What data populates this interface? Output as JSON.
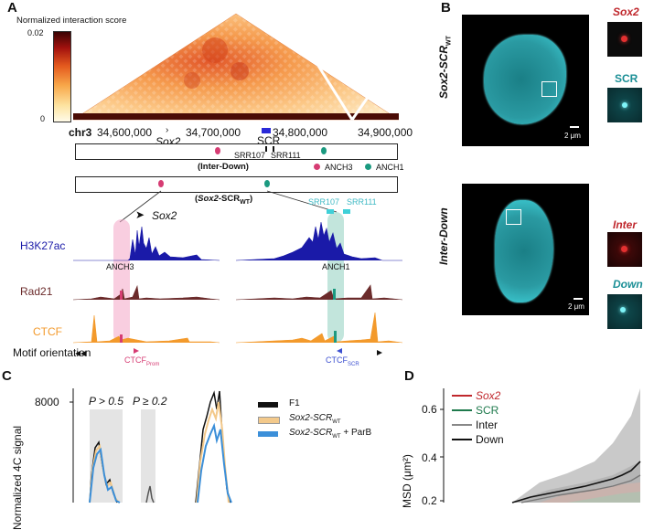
{
  "panels": {
    "a": "A",
    "b": "B",
    "c": "C",
    "d": "D"
  },
  "colorbar": {
    "title": "Normalized interaction score",
    "max": "0.02",
    "min": "0"
  },
  "coords": {
    "chrom": "chr3",
    "ticks": [
      "34,600,000",
      "34,700,000",
      "34,800,000",
      "34,900,000"
    ],
    "sox2": "Sox2",
    "scr": "SCR"
  },
  "construct1": {
    "srr107": "SRR107",
    "srr111": "SRR111",
    "name": "(Inter-Down)",
    "anch3": "ANCH3",
    "anch1": "ANCH1"
  },
  "construct2": {
    "name_main": "Sox2",
    "name_rest": "-SCR",
    "name_sub": "WT"
  },
  "tracks": {
    "sox2_label": "Sox2",
    "srr107": "SRR107",
    "srr111": "SRR111",
    "anch3": "ANCH3",
    "anch1": "ANCH1",
    "h3k27ac": "H3K27ac",
    "rad21": "Rad21",
    "ctcf": "CTCF",
    "motif": "Motif orientation",
    "ctcf_prom": "CTCF",
    "ctcf_prom_sub": "Prom",
    "ctcf_scr": "CTCF",
    "ctcf_scr_sub": "SCR"
  },
  "panel_b": {
    "row1_label_main": "Sox2-SCR",
    "row1_label_sub": "WT",
    "row2_label": "Inter-Down",
    "scalebar": "2 μm",
    "zoom1_top": "Sox2",
    "zoom1_bottom": "SCR",
    "zoom2_top": "Inter",
    "zoom2_bottom": "Down"
  },
  "panel_c": {
    "ytick_top": "8000",
    "ylabel": "Normalized 4C signal",
    "p1": "P > 0.5",
    "p2": "P ≥ 0.2",
    "legend": [
      {
        "label": "F1",
        "color": "#111111"
      },
      {
        "label": "Sox2-SCR",
        "sub": "WT",
        "color": "#f3c98b"
      },
      {
        "label": "Sox2-SCR",
        "sub": "WT",
        "extra": " + ParB",
        "color": "#3b8fd9"
      }
    ]
  },
  "panel_d": {
    "ylabel": "MSD (μm²)",
    "yticks": [
      "0.6",
      "0.4",
      "0.2"
    ],
    "legend": [
      {
        "label": "Sox2",
        "color": "#c0282d"
      },
      {
        "label": "SCR",
        "color": "#1f7a4d"
      },
      {
        "label": "Inter",
        "color": "#888888"
      },
      {
        "label": "Down",
        "color": "#111111"
      }
    ]
  },
  "colors": {
    "h3k27ac": "#1a1aa8",
    "rad21": "#6b2b2b",
    "ctcf": "#f39a2c",
    "anch3": "#d63c73",
    "anch1": "#1b9a80",
    "cyan": "#3fd0d8"
  }
}
